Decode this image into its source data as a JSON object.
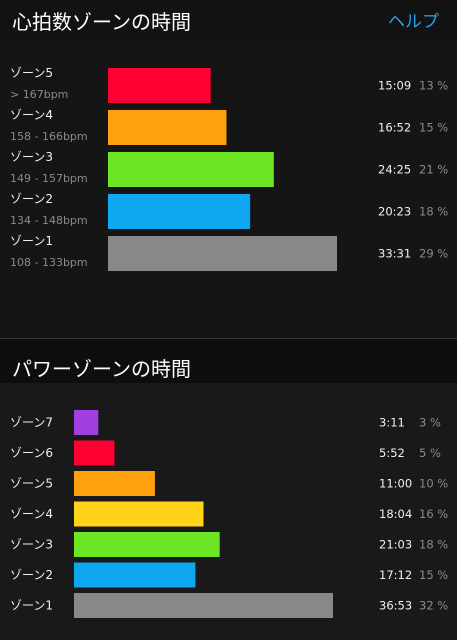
{
  "heart_rate": {
    "title": "心拍数ゾーンの時間",
    "help_label": "ヘルプ"
  },
  "power": {
    "title": "パワーゾーンの時間"
  },
  "chart_data": [
    {
      "type": "bar",
      "orientation": "horizontal",
      "title": "心拍数ゾーンの時間",
      "categories": [
        "ゾーン5",
        "ゾーン4",
        "ゾーン3",
        "ゾーン2",
        "ゾーン1"
      ],
      "ranges": [
        "> 167bpm",
        "158 - 166bpm",
        "149 - 157bpm",
        "134 - 148bpm",
        "108 - 133bpm"
      ],
      "times": [
        "15:09",
        "16:52",
        "24:25",
        "20:23",
        "33:31"
      ],
      "values": [
        13,
        15,
        21,
        18,
        29
      ],
      "value_labels": [
        "13 %",
        "15 %",
        "21 %",
        "18 %",
        "29 %"
      ],
      "colors": [
        "#ff0033",
        "#ffa00f",
        "#6ce622",
        "#0ea7f0",
        "#888888"
      ],
      "xlim": [
        0,
        29
      ]
    },
    {
      "type": "bar",
      "orientation": "horizontal",
      "title": "パワーゾーンの時間",
      "categories": [
        "ゾーン7",
        "ゾーン6",
        "ゾーン5",
        "ゾーン4",
        "ゾーン3",
        "ゾーン2",
        "ゾーン1"
      ],
      "times": [
        "3:11",
        "5:52",
        "11:00",
        "18:04",
        "21:03",
        "17:12",
        "36:53"
      ],
      "values": [
        3,
        5,
        10,
        16,
        18,
        15,
        32
      ],
      "value_labels": [
        "3 %",
        "5 %",
        "10 %",
        "16 %",
        "18 %",
        "15 %",
        "32 %"
      ],
      "colors": [
        "#a040e0",
        "#ff0033",
        "#ffa00f",
        "#ffd31a",
        "#6ce622",
        "#0ea7f0",
        "#888888"
      ],
      "xlim": [
        0,
        32
      ]
    }
  ]
}
